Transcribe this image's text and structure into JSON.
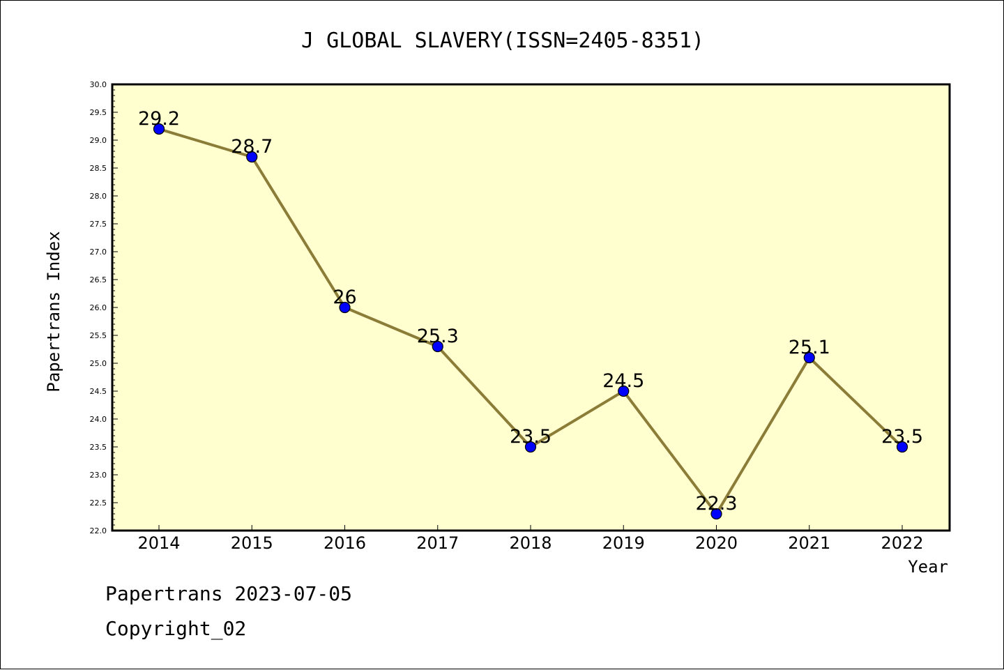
{
  "chart_data": {
    "type": "line",
    "title": "J GLOBAL SLAVERY(ISSN=2405-8351)",
    "xlabel": "Year",
    "ylabel": "Papertrans Index",
    "categories": [
      "2014",
      "2015",
      "2016",
      "2017",
      "2018",
      "2019",
      "2020",
      "2021",
      "2022"
    ],
    "series": [
      {
        "values": [
          29.2,
          28.7,
          26.0,
          25.3,
          23.5,
          24.5,
          22.3,
          25.1,
          23.5
        ],
        "labels": [
          "29.2",
          "28.7",
          "26",
          "25.3",
          "23.5",
          "24.5",
          "22.3",
          "25.1",
          "23.5"
        ]
      }
    ],
    "ylim": [
      22.0,
      30.0
    ],
    "yticks": [
      "22.0",
      "22.5",
      "23.0",
      "23.5",
      "24.0",
      "24.5",
      "25.0",
      "25.5",
      "26.0",
      "26.5",
      "27.0",
      "27.5",
      "28.0",
      "28.5",
      "29.0",
      "29.5",
      "30.0"
    ],
    "grid": false,
    "legend": "none",
    "colors": {
      "plot_background": "#ffffd0",
      "line": "#8b7d38",
      "marker": "#0000ff",
      "axis": "#000000"
    }
  },
  "footer": {
    "line1": "Papertrans 2023-07-05",
    "line2": "Copyright_02"
  }
}
